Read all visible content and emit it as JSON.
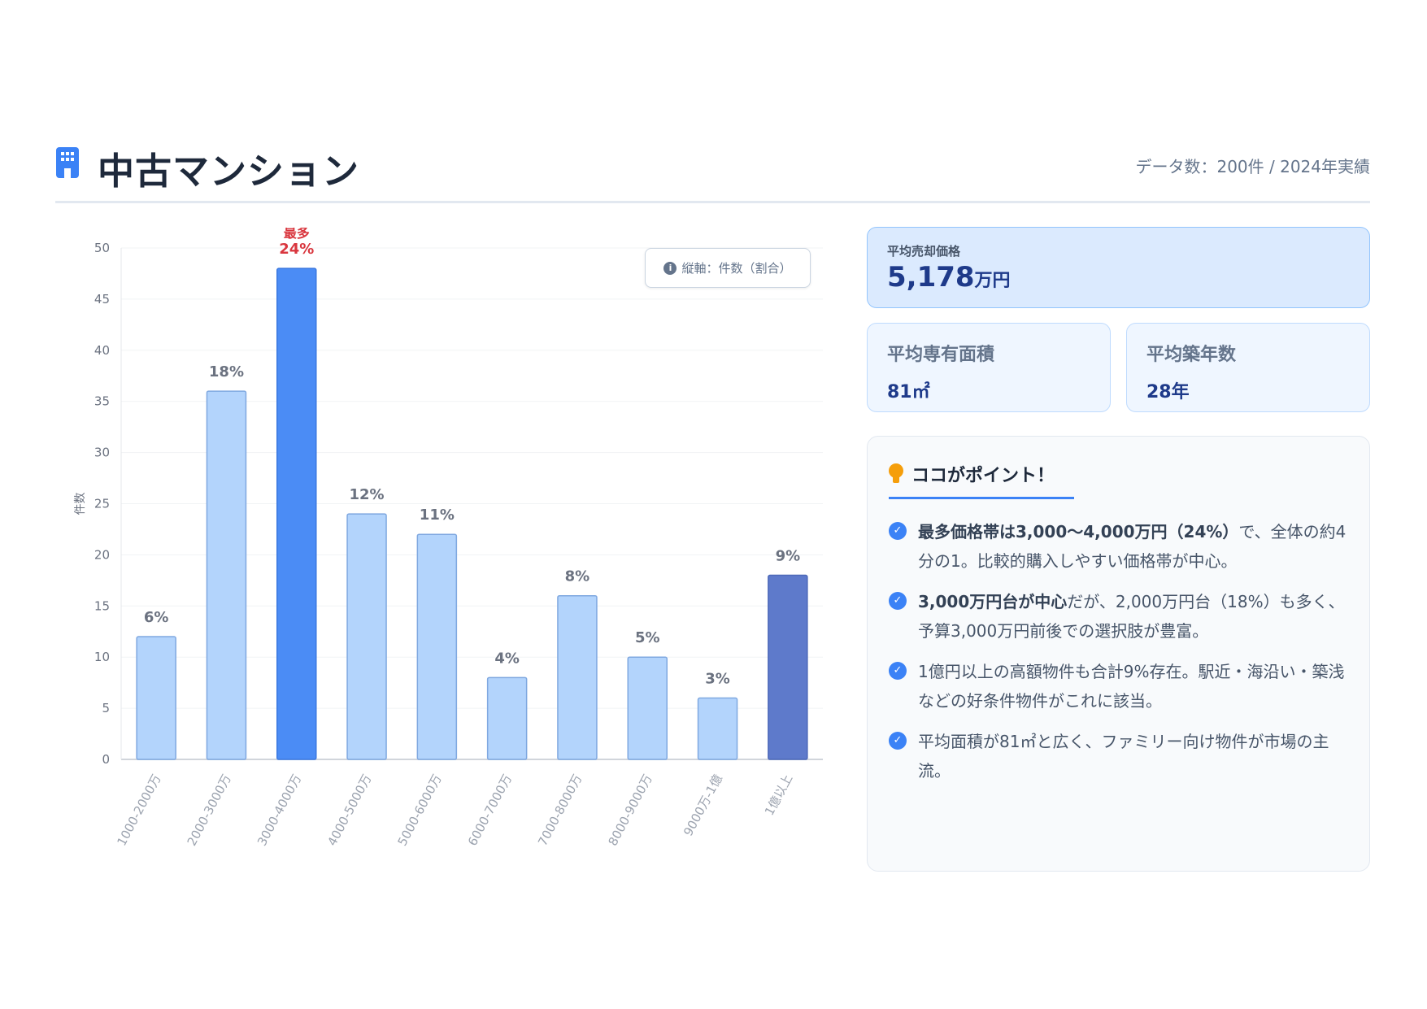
{
  "header": {
    "title": "中古マンション",
    "meta": "データ数：200件 / 2024年実績",
    "icon": "building-icon"
  },
  "chart_data": {
    "type": "bar",
    "ylabel": "件数",
    "xlabel": "",
    "ylim": [
      0,
      50
    ],
    "yticks": [
      0,
      5,
      10,
      15,
      20,
      25,
      30,
      35,
      40,
      45,
      50
    ],
    "grid": true,
    "legend_note": "縦軸：件数（割合）",
    "highlight_label": "最多",
    "categories": [
      "1000-2000万",
      "2000-3000万",
      "3000-4000万",
      "4000-5000万",
      "5000-6000万",
      "6000-7000万",
      "7000-8000万",
      "8000-9000万",
      "9000万-1億",
      "1億以上"
    ],
    "values": [
      12,
      36,
      48,
      24,
      22,
      8,
      16,
      10,
      6,
      18
    ],
    "percent_labels": [
      "6%",
      "18%",
      "24%",
      "12%",
      "11%",
      "4%",
      "8%",
      "5%",
      "3%",
      "9%"
    ],
    "colors": {
      "normal": "#b3d4fc",
      "normal_border": "#7fa8e0",
      "highlight": "#4b8cf5",
      "premium": "#5e7acb",
      "highlight_label": "#d9363e"
    }
  },
  "stats": {
    "price": {
      "label": "平均売却価格",
      "value": "5,178",
      "unit": "万円"
    },
    "area": {
      "label": "平均専有面積",
      "value": "81㎡"
    },
    "age": {
      "label": "平均築年数",
      "value": "28年"
    }
  },
  "points": {
    "title": "ココがポイント！",
    "items": [
      {
        "bold": "最多価格帯は3,000〜4,000万円（24%）",
        "text": "で、全体の約4分の1。比較的購入しやすい価格帯が中心。"
      },
      {
        "bold": "3,000万円台が中心",
        "text": "だが、2,000万円台（18%）も多く、予算3,000万円前後での選択肢が豊富。"
      },
      {
        "bold": "",
        "text": "1億円以上の高額物件も合計9%存在。駅近・海沿い・築浅などの好条件物件がこれに該当。"
      },
      {
        "bold": "",
        "text": "平均面積が81㎡と広く、ファミリー向け物件が市場の主流。"
      }
    ]
  }
}
